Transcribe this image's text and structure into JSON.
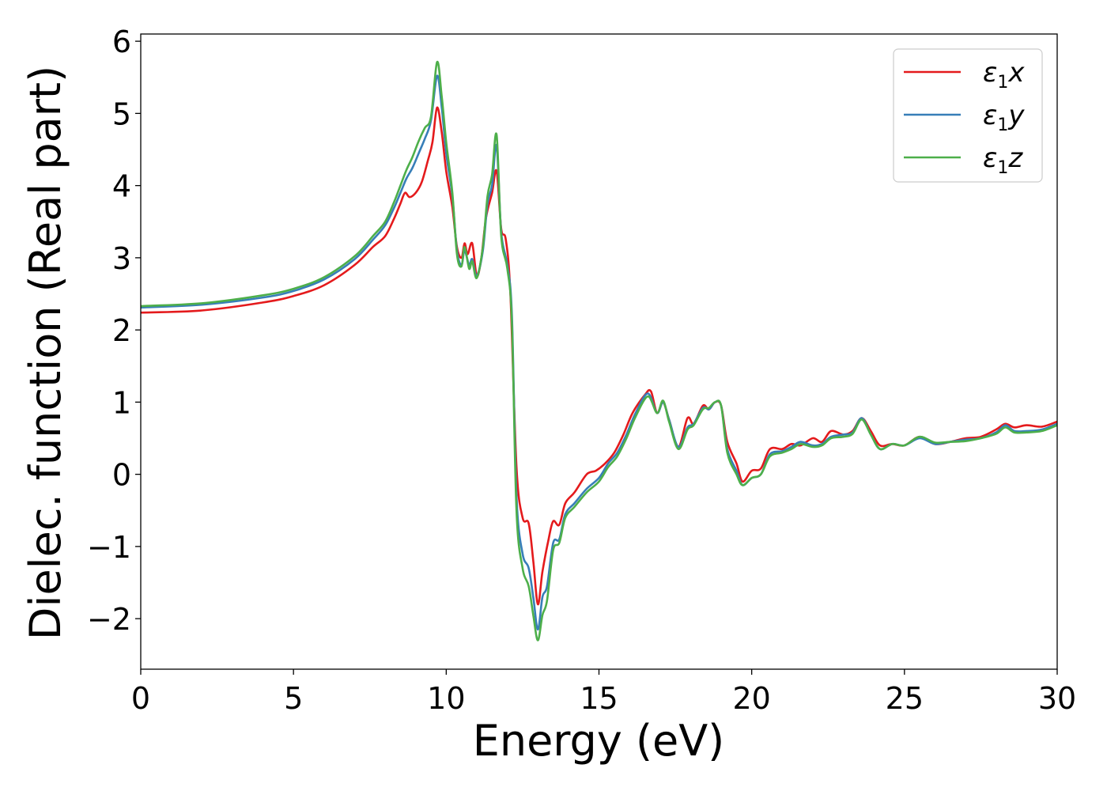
{
  "chart_data": {
    "type": "line",
    "title": "",
    "xlabel": "Energy (eV)",
    "ylabel": "Dielec. function (Real part)",
    "xlim": [
      0,
      30
    ],
    "ylim": [
      -2.7,
      6.1
    ],
    "xticks": [
      0,
      5,
      10,
      15,
      20,
      25,
      30
    ],
    "yticks": [
      -2,
      -1,
      0,
      1,
      2,
      3,
      4,
      5,
      6
    ],
    "xtick_labels": [
      "0",
      "5",
      "10",
      "15",
      "20",
      "25",
      "30"
    ],
    "ytick_labels": [
      "−2",
      "−1",
      "0",
      "1",
      "2",
      "3",
      "4",
      "5",
      "6"
    ],
    "grid": false,
    "legend_position": "top-right",
    "series": [
      {
        "name": "ε1x",
        "symbol": "ε",
        "subscript": "1",
        "axis": "x",
        "color": "#e41a1c",
        "points": [
          [
            0,
            2.24
          ],
          [
            2,
            2.27
          ],
          [
            4,
            2.38
          ],
          [
            5,
            2.47
          ],
          [
            6,
            2.62
          ],
          [
            7,
            2.9
          ],
          [
            7.6,
            3.15
          ],
          [
            8,
            3.3
          ],
          [
            8.3,
            3.55
          ],
          [
            8.5,
            3.75
          ],
          [
            8.65,
            3.9
          ],
          [
            8.8,
            3.84
          ],
          [
            9,
            3.9
          ],
          [
            9.2,
            4.05
          ],
          [
            9.4,
            4.35
          ],
          [
            9.55,
            4.6
          ],
          [
            9.7,
            5.08
          ],
          [
            9.85,
            4.75
          ],
          [
            10,
            4.2
          ],
          [
            10.2,
            3.7
          ],
          [
            10.35,
            3.15
          ],
          [
            10.5,
            3.0
          ],
          [
            10.6,
            3.2
          ],
          [
            10.7,
            3.05
          ],
          [
            10.85,
            3.2
          ],
          [
            11,
            2.75
          ],
          [
            11.15,
            3.0
          ],
          [
            11.3,
            3.55
          ],
          [
            11.5,
            3.9
          ],
          [
            11.65,
            4.2
          ],
          [
            11.8,
            3.4
          ],
          [
            11.95,
            3.25
          ],
          [
            12.1,
            2.5
          ],
          [
            12.3,
            0.1
          ],
          [
            12.5,
            -0.6
          ],
          [
            12.7,
            -0.68
          ],
          [
            12.85,
            -1.2
          ],
          [
            13.0,
            -1.8
          ],
          [
            13.15,
            -1.35
          ],
          [
            13.35,
            -0.9
          ],
          [
            13.5,
            -0.65
          ],
          [
            13.7,
            -0.7
          ],
          [
            13.9,
            -0.4
          ],
          [
            14.2,
            -0.25
          ],
          [
            14.6,
            0.0
          ],
          [
            14.9,
            0.05
          ],
          [
            15.2,
            0.15
          ],
          [
            15.5,
            0.3
          ],
          [
            15.8,
            0.55
          ],
          [
            16.1,
            0.85
          ],
          [
            16.5,
            1.1
          ],
          [
            16.7,
            1.15
          ],
          [
            16.9,
            0.85
          ],
          [
            17.1,
            1.0
          ],
          [
            17.3,
            0.75
          ],
          [
            17.6,
            0.38
          ],
          [
            17.9,
            0.78
          ],
          [
            18.1,
            0.7
          ],
          [
            18.4,
            0.95
          ],
          [
            18.6,
            0.9
          ],
          [
            18.8,
            1.0
          ],
          [
            19.0,
            0.95
          ],
          [
            19.2,
            0.45
          ],
          [
            19.5,
            0.15
          ],
          [
            19.7,
            -0.1
          ],
          [
            20.0,
            0.05
          ],
          [
            20.3,
            0.08
          ],
          [
            20.6,
            0.35
          ],
          [
            21.0,
            0.35
          ],
          [
            21.3,
            0.42
          ],
          [
            21.6,
            0.4
          ],
          [
            22.0,
            0.5
          ],
          [
            22.3,
            0.45
          ],
          [
            22.6,
            0.6
          ],
          [
            23.0,
            0.55
          ],
          [
            23.3,
            0.6
          ],
          [
            23.6,
            0.78
          ],
          [
            23.9,
            0.6
          ],
          [
            24.2,
            0.4
          ],
          [
            24.6,
            0.42
          ],
          [
            25.0,
            0.4
          ],
          [
            25.5,
            0.52
          ],
          [
            26.0,
            0.42
          ],
          [
            26.5,
            0.45
          ],
          [
            27.0,
            0.5
          ],
          [
            27.5,
            0.52
          ],
          [
            28.0,
            0.62
          ],
          [
            28.3,
            0.7
          ],
          [
            28.6,
            0.65
          ],
          [
            29.0,
            0.68
          ],
          [
            29.5,
            0.66
          ],
          [
            30,
            0.73
          ]
        ]
      },
      {
        "name": "ε1y",
        "symbol": "ε",
        "subscript": "1",
        "axis": "y",
        "color": "#377eb8",
        "points": [
          [
            0,
            2.31
          ],
          [
            2,
            2.35
          ],
          [
            4,
            2.45
          ],
          [
            5,
            2.54
          ],
          [
            6,
            2.7
          ],
          [
            7,
            2.98
          ],
          [
            7.6,
            3.25
          ],
          [
            8,
            3.45
          ],
          [
            8.3,
            3.7
          ],
          [
            8.5,
            3.9
          ],
          [
            8.7,
            4.1
          ],
          [
            8.9,
            4.25
          ],
          [
            9.1,
            4.45
          ],
          [
            9.3,
            4.65
          ],
          [
            9.5,
            4.9
          ],
          [
            9.7,
            5.52
          ],
          [
            9.85,
            5.1
          ],
          [
            10.0,
            4.45
          ],
          [
            10.2,
            3.85
          ],
          [
            10.35,
            3.1
          ],
          [
            10.5,
            2.9
          ],
          [
            10.6,
            3.1
          ],
          [
            10.75,
            2.9
          ],
          [
            10.85,
            2.98
          ],
          [
            11.0,
            2.75
          ],
          [
            11.2,
            3.1
          ],
          [
            11.35,
            3.75
          ],
          [
            11.5,
            4.0
          ],
          [
            11.65,
            4.55
          ],
          [
            11.8,
            3.35
          ],
          [
            12.0,
            2.9
          ],
          [
            12.15,
            2.2
          ],
          [
            12.3,
            -0.3
          ],
          [
            12.5,
            -1.1
          ],
          [
            12.7,
            -1.3
          ],
          [
            12.85,
            -1.7
          ],
          [
            13.0,
            -2.15
          ],
          [
            13.15,
            -1.7
          ],
          [
            13.3,
            -1.55
          ],
          [
            13.5,
            -0.95
          ],
          [
            13.7,
            -0.9
          ],
          [
            13.9,
            -0.55
          ],
          [
            14.2,
            -0.4
          ],
          [
            14.6,
            -0.2
          ],
          [
            15.0,
            -0.05
          ],
          [
            15.3,
            0.15
          ],
          [
            15.6,
            0.3
          ],
          [
            15.9,
            0.55
          ],
          [
            16.2,
            0.85
          ],
          [
            16.6,
            1.12
          ],
          [
            16.9,
            0.85
          ],
          [
            17.1,
            1.0
          ],
          [
            17.3,
            0.75
          ],
          [
            17.6,
            0.38
          ],
          [
            17.9,
            0.65
          ],
          [
            18.1,
            0.7
          ],
          [
            18.4,
            0.92
          ],
          [
            18.6,
            0.9
          ],
          [
            18.8,
            1.0
          ],
          [
            19.0,
            0.95
          ],
          [
            19.2,
            0.35
          ],
          [
            19.5,
            0.05
          ],
          [
            19.7,
            -0.15
          ],
          [
            20.0,
            -0.05
          ],
          [
            20.3,
            0.0
          ],
          [
            20.6,
            0.28
          ],
          [
            21.0,
            0.32
          ],
          [
            21.3,
            0.38
          ],
          [
            21.6,
            0.45
          ],
          [
            22.0,
            0.4
          ],
          [
            22.3,
            0.42
          ],
          [
            22.6,
            0.52
          ],
          [
            23.0,
            0.55
          ],
          [
            23.3,
            0.58
          ],
          [
            23.6,
            0.78
          ],
          [
            23.9,
            0.55
          ],
          [
            24.2,
            0.35
          ],
          [
            24.6,
            0.42
          ],
          [
            25.0,
            0.4
          ],
          [
            25.5,
            0.5
          ],
          [
            26.0,
            0.42
          ],
          [
            26.5,
            0.45
          ],
          [
            27.0,
            0.48
          ],
          [
            27.5,
            0.5
          ],
          [
            28.0,
            0.58
          ],
          [
            28.3,
            0.68
          ],
          [
            28.6,
            0.6
          ],
          [
            29.0,
            0.6
          ],
          [
            29.5,
            0.62
          ],
          [
            30,
            0.7
          ]
        ]
      },
      {
        "name": "ε1z",
        "symbol": "ε",
        "subscript": "1",
        "axis": "z",
        "color": "#4daf4a",
        "points": [
          [
            0,
            2.33
          ],
          [
            2,
            2.37
          ],
          [
            4,
            2.48
          ],
          [
            5,
            2.57
          ],
          [
            6,
            2.73
          ],
          [
            7,
            3.02
          ],
          [
            7.6,
            3.3
          ],
          [
            8,
            3.5
          ],
          [
            8.3,
            3.78
          ],
          [
            8.5,
            4.0
          ],
          [
            8.7,
            4.22
          ],
          [
            8.9,
            4.4
          ],
          [
            9.1,
            4.62
          ],
          [
            9.3,
            4.8
          ],
          [
            9.5,
            4.95
          ],
          [
            9.7,
            5.71
          ],
          [
            9.85,
            5.25
          ],
          [
            10.0,
            4.6
          ],
          [
            10.2,
            3.9
          ],
          [
            10.35,
            3.05
          ],
          [
            10.5,
            2.88
          ],
          [
            10.6,
            3.15
          ],
          [
            10.75,
            2.85
          ],
          [
            10.85,
            2.95
          ],
          [
            11.0,
            2.72
          ],
          [
            11.2,
            3.15
          ],
          [
            11.35,
            3.85
          ],
          [
            11.5,
            4.15
          ],
          [
            11.65,
            4.7
          ],
          [
            11.8,
            3.3
          ],
          [
            12.0,
            2.85
          ],
          [
            12.15,
            2.1
          ],
          [
            12.3,
            -0.5
          ],
          [
            12.5,
            -1.3
          ],
          [
            12.7,
            -1.55
          ],
          [
            12.85,
            -1.95
          ],
          [
            13.0,
            -2.3
          ],
          [
            13.15,
            -1.95
          ],
          [
            13.3,
            -1.75
          ],
          [
            13.5,
            -1.05
          ],
          [
            13.7,
            -0.95
          ],
          [
            13.9,
            -0.6
          ],
          [
            14.2,
            -0.45
          ],
          [
            14.6,
            -0.25
          ],
          [
            15.0,
            -0.1
          ],
          [
            15.3,
            0.1
          ],
          [
            15.6,
            0.25
          ],
          [
            15.9,
            0.5
          ],
          [
            16.2,
            0.8
          ],
          [
            16.6,
            1.08
          ],
          [
            16.9,
            0.85
          ],
          [
            17.1,
            1.02
          ],
          [
            17.3,
            0.72
          ],
          [
            17.6,
            0.35
          ],
          [
            17.9,
            0.62
          ],
          [
            18.1,
            0.68
          ],
          [
            18.4,
            0.9
          ],
          [
            18.6,
            0.92
          ],
          [
            18.8,
            1.0
          ],
          [
            19.0,
            0.95
          ],
          [
            19.2,
            0.3
          ],
          [
            19.5,
            0.0
          ],
          [
            19.7,
            -0.15
          ],
          [
            20.0,
            -0.05
          ],
          [
            20.3,
            0.0
          ],
          [
            20.6,
            0.25
          ],
          [
            21.0,
            0.3
          ],
          [
            21.3,
            0.35
          ],
          [
            21.6,
            0.42
          ],
          [
            22.0,
            0.38
          ],
          [
            22.3,
            0.4
          ],
          [
            22.6,
            0.5
          ],
          [
            23.0,
            0.52
          ],
          [
            23.3,
            0.56
          ],
          [
            23.6,
            0.76
          ],
          [
            23.9,
            0.55
          ],
          [
            24.2,
            0.35
          ],
          [
            24.6,
            0.42
          ],
          [
            25.0,
            0.4
          ],
          [
            25.5,
            0.52
          ],
          [
            26.0,
            0.44
          ],
          [
            26.5,
            0.45
          ],
          [
            27.0,
            0.46
          ],
          [
            27.5,
            0.5
          ],
          [
            28.0,
            0.56
          ],
          [
            28.3,
            0.65
          ],
          [
            28.6,
            0.58
          ],
          [
            29.0,
            0.58
          ],
          [
            29.5,
            0.6
          ],
          [
            30,
            0.68
          ]
        ]
      }
    ]
  }
}
